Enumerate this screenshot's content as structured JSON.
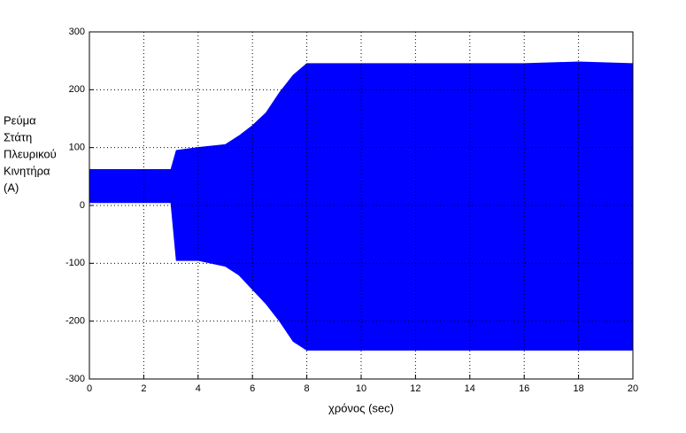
{
  "chart_data": {
    "type": "band",
    "xlabel": "χρόνος (sec)",
    "ylabel": [
      "Ρεύμα",
      "Στάτη",
      "Πλευρικού",
      "Κινητήρα",
      "(A)"
    ],
    "x": [
      0,
      3,
      3.2,
      4,
      5,
      5.5,
      6,
      6.5,
      7,
      7.5,
      8,
      10,
      12,
      14,
      16,
      18,
      20
    ],
    "series": [
      {
        "color": "#0000ff",
        "values": [
          62,
          62,
          95,
          100,
          105,
          120,
          138,
          160,
          195,
          225,
          245,
          245,
          245,
          245,
          245,
          248,
          245
        ]
      },
      {
        "color": "#0000ff",
        "values": [
          5,
          5,
          -95,
          -95,
          -105,
          -120,
          -145,
          -170,
          -200,
          -235,
          -250,
          -250,
          -250,
          -250,
          -250,
          -250,
          -250
        ]
      }
    ],
    "xlim": [
      0,
      20
    ],
    "xticks": [
      0,
      2,
      4,
      6,
      8,
      10,
      12,
      14,
      16,
      18,
      20
    ],
    "ylim": [
      -300,
      300
    ],
    "yticks": [
      -300,
      -200,
      -100,
      0,
      100,
      200,
      300
    ],
    "grid": true
  }
}
